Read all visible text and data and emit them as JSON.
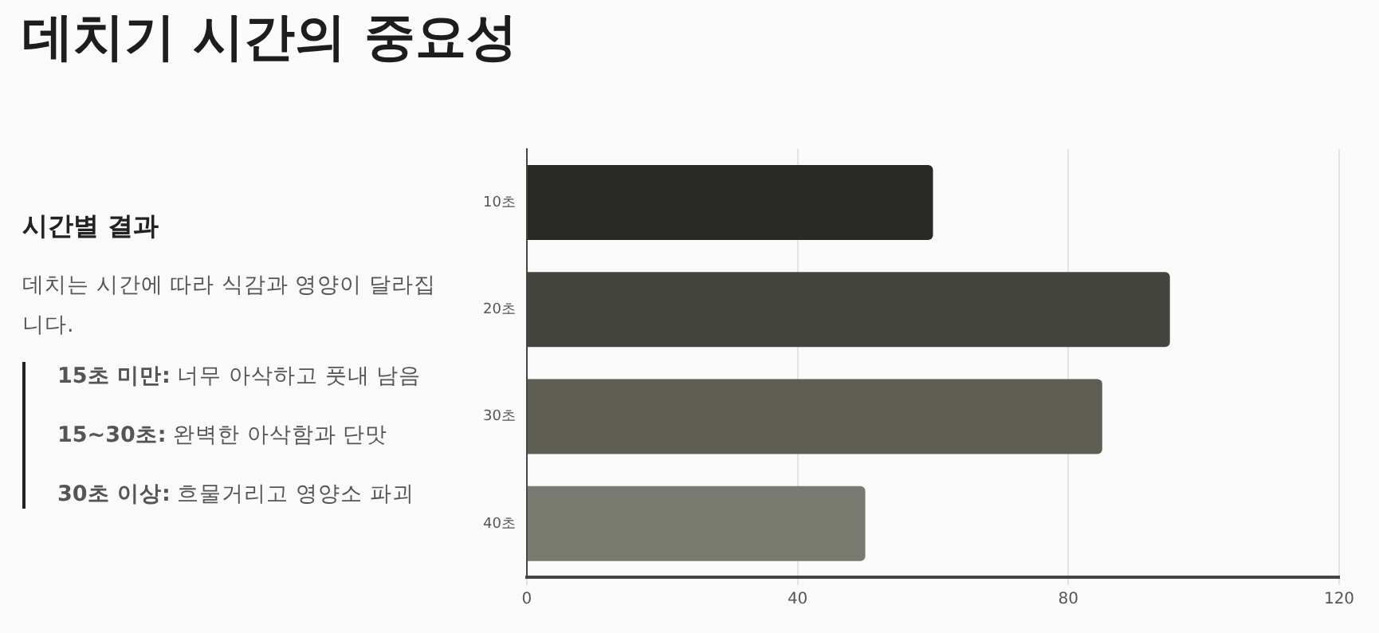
{
  "chart_data": {
    "type": "bar",
    "orientation": "horizontal",
    "title": "데치기 시간의 중요성",
    "subtitle": "시간별 결과",
    "annotations": [
      "데치는 시간에 따라 식감과 영양이 달라집니다.",
      "15초 미만: 너무 아삭하고 풋내 남음",
      "15~30초: 완벽한 아삭함과 단맛",
      "30초 이상: 흐물거리고 영양소 파괴"
    ],
    "categories": [
      "10초",
      "20초",
      "30초",
      "40초"
    ],
    "values": [
      60,
      95,
      85,
      50
    ],
    "colors": [
      "#292a25",
      "#43443d",
      "#5e5e55",
      "#797a70"
    ],
    "xlim": [
      0,
      120
    ],
    "xticks": [
      0,
      40,
      80,
      120
    ],
    "grid": "x",
    "legend": false
  }
}
